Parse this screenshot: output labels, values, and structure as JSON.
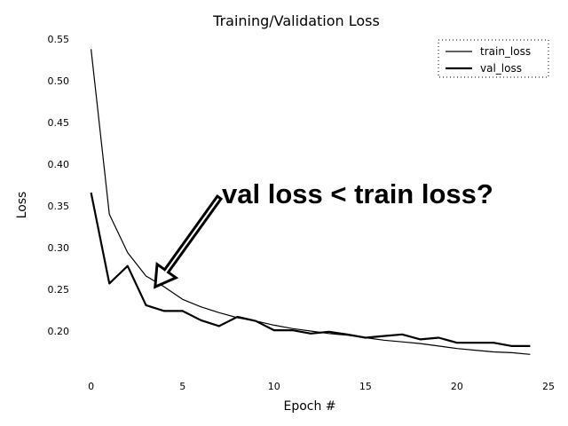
{
  "chart_data": {
    "type": "line",
    "title": "Training/Validation Loss",
    "xlabel": "Epoch #",
    "ylabel": "Loss",
    "xlim": [
      -1,
      25
    ],
    "ylim": [
      0.15,
      0.55
    ],
    "xticks": [
      0,
      5,
      10,
      15,
      20,
      25
    ],
    "yticks": [
      0.2,
      0.25,
      0.3,
      0.35,
      0.4,
      0.45,
      0.5,
      0.55
    ],
    "grid": false,
    "legend_position": "top-right",
    "x": [
      0,
      1,
      2,
      3,
      4,
      5,
      6,
      7,
      8,
      9,
      10,
      11,
      12,
      13,
      14,
      15,
      16,
      17,
      18,
      19,
      20,
      21,
      22,
      23,
      24
    ],
    "series": [
      {
        "name": "train_loss",
        "color": "#000000",
        "line_width": "thin",
        "values": [
          0.538,
          0.34,
          0.294,
          0.266,
          0.253,
          0.238,
          0.229,
          0.222,
          0.216,
          0.212,
          0.207,
          0.203,
          0.2,
          0.197,
          0.195,
          0.192,
          0.189,
          0.187,
          0.185,
          0.182,
          0.179,
          0.177,
          0.175,
          0.174,
          0.172
        ]
      },
      {
        "name": "val_loss",
        "color": "#000000",
        "line_width": "thick",
        "values": [
          0.366,
          0.257,
          0.278,
          0.231,
          0.224,
          0.224,
          0.213,
          0.206,
          0.217,
          0.212,
          0.201,
          0.201,
          0.197,
          0.199,
          0.196,
          0.192,
          0.194,
          0.196,
          0.19,
          0.192,
          0.186,
          0.186,
          0.186,
          0.182,
          0.182
        ]
      }
    ],
    "annotation": {
      "text": "val loss < train loss?",
      "arrow_from": [
        7,
        0.36
      ],
      "arrow_to": [
        3.5,
        0.253
      ]
    }
  }
}
